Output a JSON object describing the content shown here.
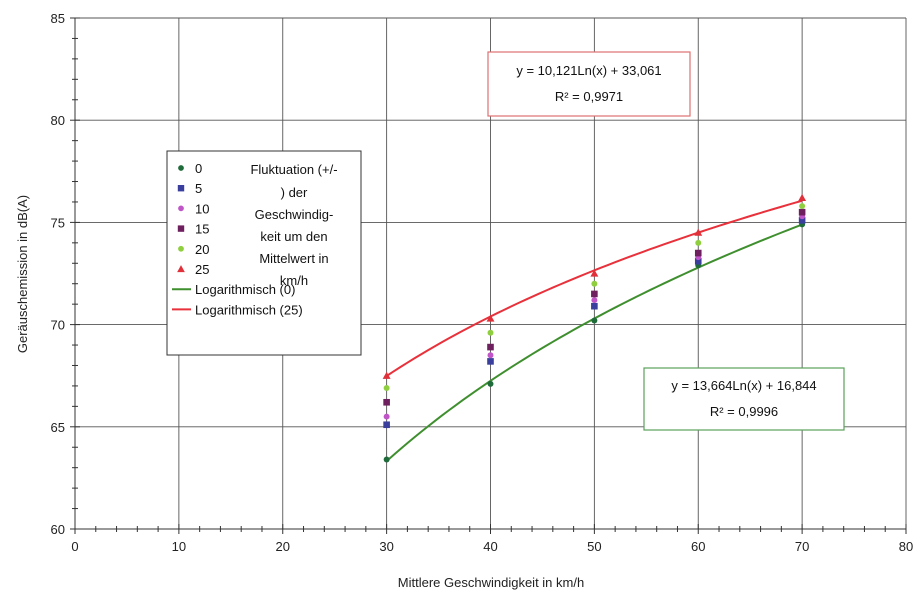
{
  "chart_data": {
    "type": "scatter",
    "xlabel": "Mittlere Geschwindigkeit in km/h",
    "ylabel": "Geräuschemission in dB(A)",
    "xlim": [
      0,
      80
    ],
    "ylim": [
      60,
      85
    ],
    "x_ticks": [
      0,
      10,
      20,
      30,
      40,
      50,
      60,
      70,
      80
    ],
    "y_ticks": [
      60,
      65,
      70,
      75,
      80,
      85
    ],
    "x_minor_step": 2,
    "y_minor_step": 1,
    "grid": true,
    "legend_placement": "left",
    "legend_title": [
      "Fluktuation (+/-",
      ") der",
      "Geschwindig-",
      "keit um den",
      "Mittelwert in",
      "km/h"
    ],
    "x": [
      30,
      40,
      50,
      60,
      70
    ],
    "series": [
      {
        "name": "0",
        "marker": "circle",
        "color": "#1f6b3a",
        "values": [
          63.4,
          67.1,
          70.2,
          72.9,
          74.9
        ]
      },
      {
        "name": "5",
        "marker": "square",
        "color": "#3a3f9e",
        "values": [
          65.1,
          68.2,
          70.9,
          73.1,
          75.1
        ]
      },
      {
        "name": "10",
        "marker": "circle",
        "color": "#c055c8",
        "values": [
          65.5,
          68.5,
          71.2,
          73.3,
          75.3
        ]
      },
      {
        "name": "15",
        "marker": "square",
        "color": "#6e1f5e",
        "values": [
          66.2,
          68.9,
          71.5,
          73.5,
          75.5
        ]
      },
      {
        "name": "20",
        "marker": "circle",
        "color": "#8fcf3f",
        "values": [
          66.9,
          69.6,
          72.0,
          74.0,
          75.8
        ]
      },
      {
        "name": "25",
        "marker": "triangle",
        "color": "#e0303a",
        "values": [
          67.5,
          70.3,
          72.5,
          74.5,
          76.2
        ]
      }
    ],
    "trendlines": [
      {
        "name": "Logarithmisch (0)",
        "color": "#3f8f2f",
        "a": 13.664,
        "b": 16.844,
        "x_range": [
          30,
          70
        ]
      },
      {
        "name": "Logarithmisch (25)",
        "color": "#e8313b",
        "a": 10.121,
        "b": 33.061,
        "x_range": [
          30,
          70
        ]
      }
    ],
    "annotations": [
      {
        "id": "eq25",
        "lines": [
          "y = 10,121Ln(x) + 33,061",
          "R² = 0,9971"
        ],
        "border": "#e07070"
      },
      {
        "id": "eq0",
        "lines": [
          "y = 13,664Ln(x) + 16,844",
          "R² = 0,9996"
        ],
        "border": "#5aa05a"
      }
    ]
  }
}
